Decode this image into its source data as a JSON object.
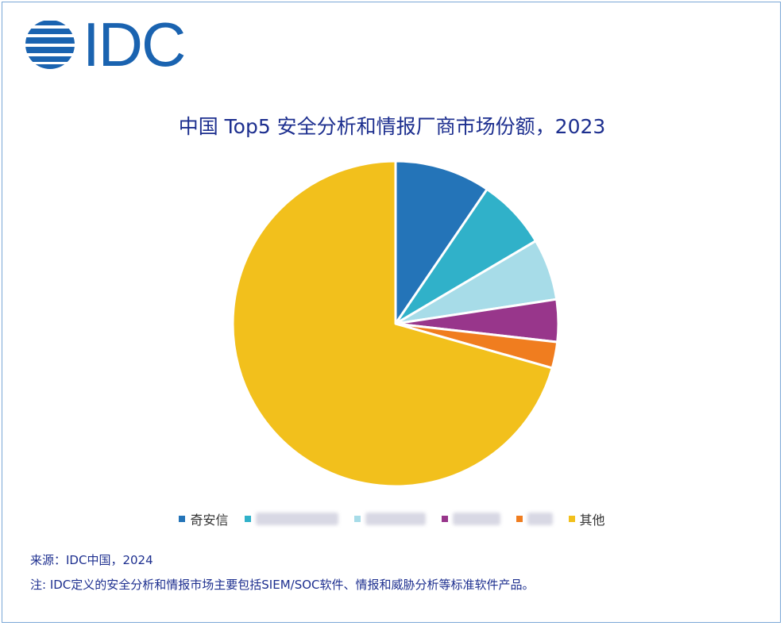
{
  "logo": {
    "text": "IDC",
    "color": "#1a63b0"
  },
  "chart_data": {
    "type": "pie",
    "title": "中国 Top5 安全分析和情报厂商市场份额，2023",
    "slices": [
      {
        "label": "奇安信",
        "value": 9.5,
        "color": "#2474b8",
        "label_visible": true
      },
      {
        "label": "",
        "value": 7.0,
        "color": "#30b1c9",
        "label_visible": false
      },
      {
        "label": "",
        "value": 6.1,
        "color": "#a7dce8",
        "label_visible": false
      },
      {
        "label": "",
        "value": 4.2,
        "color": "#98368b",
        "label_visible": false
      },
      {
        "label": "",
        "value": 2.6,
        "color": "#f07d1f",
        "label_visible": false
      },
      {
        "label": "其他",
        "value": 70.6,
        "color": "#f2c01c",
        "label_visible": true
      }
    ],
    "start_angle_deg": 0,
    "direction": "clockwise",
    "legend_position": "bottom"
  },
  "footer": {
    "source": "来源：IDC中国，2024",
    "note": "注: IDC定义的安全分析和情报市场主要包括SIEM/SOC软件、情报和威胁分析等标准软件产品。"
  }
}
